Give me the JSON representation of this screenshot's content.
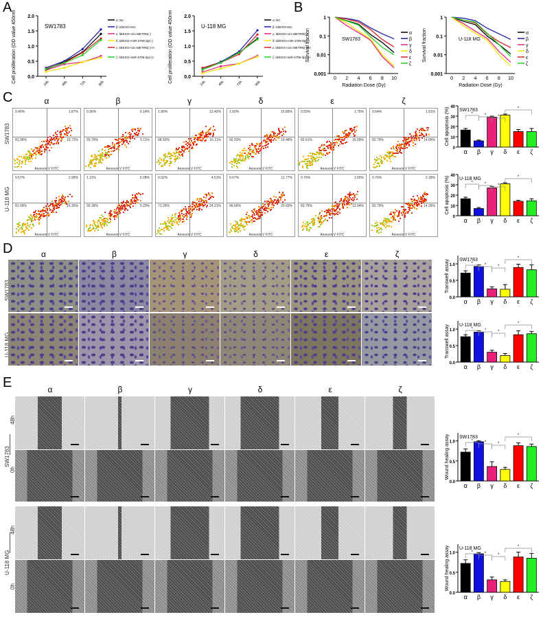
{
  "panels": {
    "A": {
      "letter": "A"
    },
    "B": {
      "letter": "B"
    },
    "C": {
      "letter": "C",
      "col_headers": [
        "α",
        "β",
        "γ",
        "δ",
        "ε",
        "ζ"
      ],
      "row_labels": [
        "SW1783",
        "U-118 MG"
      ],
      "xlabel": "Annexin V FITC"
    },
    "D": {
      "letter": "D",
      "col_headers": [
        "α",
        "β",
        "γ",
        "δ",
        "ε",
        "ζ"
      ],
      "row_labels": [
        "SW1783",
        "U-118 MG"
      ]
    },
    "E": {
      "letter": "E",
      "col_headers": [
        "α",
        "β",
        "γ",
        "δ",
        "ε",
        "ζ"
      ],
      "row_labels": [
        "SW1783",
        "U-118 MG"
      ],
      "time_labels": [
        "48h",
        "0h"
      ]
    }
  },
  "legend_A": [
    {
      "key": "α",
      "label": "α: NC",
      "color": "#000000"
    },
    {
      "key": "β",
      "label": "β: ldrEXO+NC",
      "color": "#1a1aa6"
    },
    {
      "key": "γ",
      "label": "γ: ldrEXO+circ-METRN(-)",
      "color": "#e0287a"
    },
    {
      "key": "δ",
      "label": "δ: ldrEXO+miR-4709-3p(+)",
      "color": "#f2e600"
    },
    {
      "key": "ε",
      "label": "ε: ldrEXO+circ-METRN(-)+miR-4709-3p(-)",
      "color": "#d42020"
    },
    {
      "key": "ζ",
      "label": "ζ: ldrEXO+miR-4709-3p(+)+GRB14(+)",
      "color": "#22cc22"
    }
  ],
  "chart_data": [
    {
      "id": "A-SW1783",
      "type": "line",
      "title": "SW1783",
      "xlabel": "",
      "ylabel": "Cell proliferation (OD value 450nm)",
      "categories": [
        "24h",
        "48h",
        "72h",
        "96h"
      ],
      "ylim": [
        0,
        2.0
      ],
      "yticks": [
        0.0,
        0.5,
        1.0,
        1.5,
        2.0
      ],
      "series": [
        {
          "name": "α",
          "values": [
            0.22,
            0.48,
            0.8,
            1.4
          ]
        },
        {
          "name": "β",
          "values": [
            0.28,
            0.5,
            0.9,
            1.55
          ]
        },
        {
          "name": "γ",
          "values": [
            0.2,
            0.4,
            0.47,
            0.67
          ]
        },
        {
          "name": "δ",
          "values": [
            0.15,
            0.28,
            0.47,
            0.62
          ]
        },
        {
          "name": "ε",
          "values": [
            0.25,
            0.45,
            0.78,
            1.25
          ]
        },
        {
          "name": "ζ",
          "values": [
            0.24,
            0.44,
            0.7,
            1.2
          ]
        }
      ]
    },
    {
      "id": "A-U118MG",
      "type": "line",
      "title": "U-118 MG",
      "xlabel": "",
      "ylabel": "Cell proliferation (OD value 450nm)",
      "categories": [
        "24h",
        "48h",
        "72h",
        "96h"
      ],
      "ylim": [
        0,
        2.0
      ],
      "yticks": [
        0.0,
        0.5,
        1.0,
        1.5,
        2.0
      ],
      "series": [
        {
          "name": "α",
          "values": [
            0.22,
            0.48,
            0.78,
            1.25
          ]
        },
        {
          "name": "β",
          "values": [
            0.27,
            0.47,
            0.82,
            1.52
          ]
        },
        {
          "name": "γ",
          "values": [
            0.14,
            0.33,
            0.42,
            0.68
          ]
        },
        {
          "name": "δ",
          "values": [
            0.1,
            0.25,
            0.42,
            0.65
          ]
        },
        {
          "name": "ε",
          "values": [
            0.28,
            0.45,
            0.73,
            1.38
          ]
        },
        {
          "name": "ζ",
          "values": [
            0.22,
            0.45,
            0.78,
            1.22
          ]
        }
      ]
    },
    {
      "id": "B-SW1783",
      "type": "line",
      "title": "SW1783",
      "yscale": "log",
      "xlabel": "Radiation Dose (Gy)",
      "ylabel": "Survival fraction",
      "x": [
        0,
        2,
        4,
        6,
        8,
        10
      ],
      "ylim": [
        0.001,
        1
      ],
      "yticks": [
        "0.001",
        "0.01",
        "0.1",
        "1"
      ],
      "series": [
        {
          "name": "α",
          "values": [
            1,
            0.65,
            0.42,
            0.12,
            0.045,
            0.013
          ]
        },
        {
          "name": "β",
          "values": [
            1,
            0.85,
            0.65,
            0.27,
            0.13,
            0.07
          ]
        },
        {
          "name": "γ",
          "values": [
            1,
            0.35,
            0.15,
            0.06,
            0.008,
            0.002
          ]
        },
        {
          "name": "δ",
          "values": [
            1,
            0.5,
            0.18,
            0.07,
            0.01,
            0.0025
          ]
        },
        {
          "name": "ε",
          "values": [
            1,
            0.8,
            0.55,
            0.22,
            0.065,
            0.026
          ]
        },
        {
          "name": "ζ",
          "values": [
            1,
            0.62,
            0.38,
            0.09,
            0.025,
            0.01
          ]
        }
      ]
    },
    {
      "id": "B-U118MG",
      "type": "line",
      "title": "U-118 MG",
      "yscale": "log",
      "xlabel": "Radiation Dose (Gy)",
      "ylabel": "Survival fraction",
      "x": [
        0,
        2,
        4,
        6,
        8,
        10
      ],
      "ylim": [
        0.001,
        1
      ],
      "yticks": [
        "0.001",
        "0.01",
        "0.1",
        "1"
      ],
      "series": [
        {
          "name": "α",
          "values": [
            1,
            0.6,
            0.4,
            0.1,
            0.035,
            0.011
          ]
        },
        {
          "name": "β",
          "values": [
            1,
            0.88,
            0.65,
            0.26,
            0.13,
            0.065
          ]
        },
        {
          "name": "γ",
          "values": [
            1,
            0.45,
            0.18,
            0.075,
            0.015,
            0.004
          ]
        },
        {
          "name": "δ",
          "values": [
            1,
            0.35,
            0.14,
            0.06,
            0.01,
            0.0025
          ]
        },
        {
          "name": "ε",
          "values": [
            1,
            0.7,
            0.5,
            0.13,
            0.05,
            0.024
          ]
        },
        {
          "name": "ζ",
          "values": [
            1,
            0.7,
            0.55,
            0.14,
            0.035,
            0.008
          ]
        }
      ]
    },
    {
      "id": "C-bar-SW1783",
      "type": "bar",
      "title": "SW1783",
      "ylabel": "Cell apoptosis (%)",
      "categories": [
        "α",
        "β",
        "γ",
        "δ",
        "ε",
        "ζ"
      ],
      "values": [
        16.5,
        6,
        29,
        31,
        15,
        15
      ],
      "errors": [
        1.5,
        0.8,
        1,
        1,
        2,
        3
      ],
      "ylim": [
        0,
        40
      ],
      "yticks": [
        0,
        10,
        20,
        30,
        40
      ]
    },
    {
      "id": "C-bar-U118MG",
      "type": "bar",
      "title": "U-118 MG",
      "ylabel": "Cell apoptosis (%)",
      "categories": [
        "α",
        "β",
        "γ",
        "δ",
        "ε",
        "ζ"
      ],
      "values": [
        16.5,
        7,
        27,
        31,
        14,
        14.5
      ],
      "errors": [
        1.5,
        1,
        1.5,
        1,
        1,
        2
      ],
      "ylim": [
        0,
        40
      ],
      "yticks": [
        0,
        10,
        20,
        30,
        40
      ]
    },
    {
      "id": "D-bar-SW1783",
      "type": "bar",
      "title": "SW1783",
      "ylabel": "Transwell assay",
      "categories": [
        "α",
        "β",
        "γ",
        "δ",
        "ε",
        "ζ"
      ],
      "values": [
        0.72,
        0.92,
        0.24,
        0.23,
        0.89,
        0.82
      ],
      "errors": [
        0.07,
        0.05,
        0.06,
        0.14,
        0.1,
        0.15
      ],
      "ylim": [
        0,
        1.25
      ],
      "yticks": [
        0.0,
        0.5,
        1.0
      ]
    },
    {
      "id": "D-bar-U118MG",
      "type": "bar",
      "title": "U-118 MG",
      "ylabel": "Transwell assay",
      "categories": [
        "α",
        "β",
        "γ",
        "δ",
        "ε",
        "ζ"
      ],
      "values": [
        0.77,
        0.91,
        0.3,
        0.2,
        0.83,
        0.86
      ],
      "errors": [
        0.06,
        0.04,
        0.06,
        0.06,
        0.12,
        0.07
      ],
      "ylim": [
        0,
        1.25
      ],
      "yticks": [
        0.0,
        0.5,
        1.0
      ]
    },
    {
      "id": "E-bar-SW1783",
      "type": "bar",
      "title": "SW1783",
      "ylabel": "Wound healing assay",
      "categories": [
        "α",
        "β",
        "γ",
        "δ",
        "ε",
        "ζ"
      ],
      "values": [
        0.72,
        0.98,
        0.36,
        0.29,
        0.88,
        0.86
      ],
      "errors": [
        0.08,
        0.02,
        0.12,
        0.05,
        0.07,
        0.06
      ],
      "ylim": [
        0,
        1.2
      ],
      "yticks": [
        0.0,
        0.5,
        1.0
      ]
    },
    {
      "id": "E-bar-U118MG",
      "type": "bar",
      "title": "U-118 MG",
      "ylabel": "Wound healing assay",
      "categories": [
        "α",
        "β",
        "γ",
        "δ",
        "ε",
        "ζ"
      ],
      "values": [
        0.72,
        0.96,
        0.31,
        0.27,
        0.88,
        0.85
      ],
      "errors": [
        0.09,
        0.03,
        0.07,
        0.04,
        0.12,
        0.12
      ],
      "ylim": [
        0,
        1.2
      ],
      "yticks": [
        0.0,
        0.5,
        1.0
      ]
    },
    {
      "id": "C-flow",
      "type": "scatter",
      "xlabel": "Annexin V FITC",
      "quadrants": {
        "SW1783": [
          {
            "group": "α",
            "UL": "0.45%",
            "UR": "1.87%",
            "LL": "81.96%",
            "LR": "15.72%"
          },
          {
            "group": "β",
            "UL": "0.96%",
            "UR": "0.14%",
            "LL": "93.79%",
            "LR": "5.11%"
          },
          {
            "group": "γ",
            "UL": "1.96%",
            "UR": "13.42%",
            "LL": "68.50%",
            "LR": "16.11%"
          },
          {
            "group": "δ",
            "UL": "1.60%",
            "UR": "15.89%",
            "LL": "66.03%",
            "LR": "16.48%"
          },
          {
            "group": "ε",
            "UL": "0.55%",
            "UR": "1.75%",
            "LL": "82.61%",
            "LR": "15.09%"
          },
          {
            "group": "ζ",
            "UL": "0.64%",
            "UR": "1.91%",
            "LL": "82.79%",
            "LR": "14.66%"
          }
        ],
        "U-118 MG": [
          {
            "group": "α",
            "UL": "0.57%",
            "UR": "2.99%",
            "LL": "81.09%",
            "LR": "15.35%"
          },
          {
            "group": "β",
            "UL": "1.11%",
            "UR": "0.28%",
            "LL": "93.39%",
            "LR": "5.23%"
          },
          {
            "group": "γ",
            "UL": "0.02%",
            "UR": "4.51%",
            "LL": "71.26%",
            "LR": "24.21%"
          },
          {
            "group": "δ",
            "UL": "0.67%",
            "UR": "11.77%",
            "LL": "66.66%",
            "LR": "20.60%"
          },
          {
            "group": "ε",
            "UL": "0.76%",
            "UR": "1.55%",
            "LL": "83.75%",
            "LR": "13.94%"
          },
          {
            "group": "ζ",
            "UL": "0.76%",
            "UR": "2.18%",
            "LL": "82.79%",
            "LR": "14.26%"
          }
        ]
      }
    }
  ],
  "significance_marker": "*"
}
